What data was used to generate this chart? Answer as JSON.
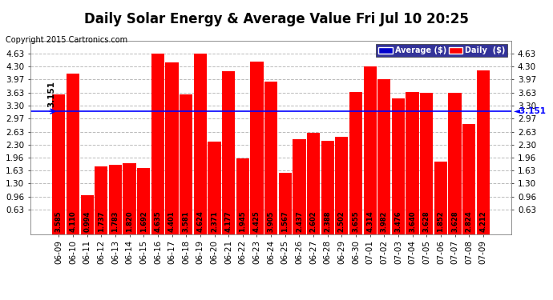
{
  "title": "Daily Solar Energy & Average Value Fri Jul 10 20:25",
  "copyright": "Copyright 2015 Cartronics.com",
  "average_value": 3.151,
  "categories": [
    "06-09",
    "06-10",
    "06-11",
    "06-12",
    "06-13",
    "06-14",
    "06-15",
    "06-16",
    "06-17",
    "06-18",
    "06-19",
    "06-20",
    "06-21",
    "06-22",
    "06-23",
    "06-24",
    "06-25",
    "06-26",
    "06-27",
    "06-28",
    "06-29",
    "06-30",
    "07-01",
    "07-02",
    "07-03",
    "07-04",
    "07-05",
    "07-06",
    "07-07",
    "07-08",
    "07-09"
  ],
  "values": [
    3.585,
    4.11,
    0.994,
    1.737,
    1.783,
    1.82,
    1.692,
    4.635,
    4.401,
    3.581,
    4.624,
    2.371,
    4.177,
    1.945,
    4.425,
    3.905,
    1.567,
    2.437,
    2.602,
    2.388,
    2.502,
    3.655,
    4.314,
    3.982,
    3.476,
    3.64,
    3.628,
    1.852,
    3.628,
    2.824,
    4.212
  ],
  "bar_color": "#ff0000",
  "line_color": "#0000ff",
  "background_color": "#ffffff",
  "grid_color": "#bbbbbb",
  "ylim_min": 0.0,
  "ylim_max": 4.97,
  "yticks": [
    0.63,
    0.96,
    1.3,
    1.63,
    1.96,
    2.3,
    2.63,
    2.97,
    3.3,
    3.63,
    3.97,
    4.3,
    4.63
  ],
  "legend_avg_color": "#0000cc",
  "legend_daily_color": "#ff0000",
  "title_fontsize": 12,
  "tick_fontsize": 7.5,
  "bar_label_fontsize": 6,
  "copyright_fontsize": 7
}
